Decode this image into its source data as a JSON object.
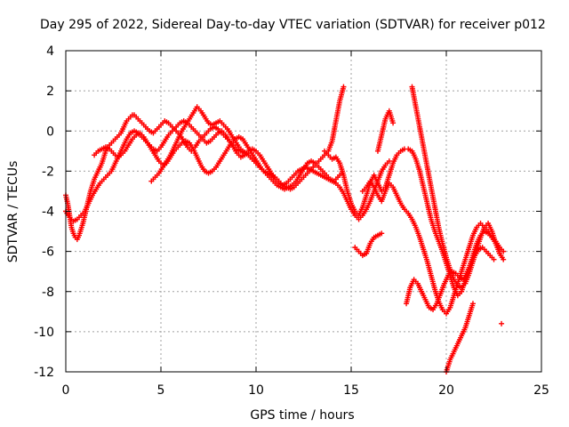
{
  "chart_data": {
    "type": "scatter",
    "title": "Day 295 of 2022, Sidereal Day-to-day VTEC variation (SDTVAR) for receiver p012",
    "xlabel": "GPS time / hours",
    "ylabel": "SDTVAR / TECUs",
    "xlim": [
      0,
      25
    ],
    "ylim": [
      -12,
      4
    ],
    "xticks": [
      0,
      5,
      10,
      15,
      20,
      25
    ],
    "yticks": [
      -12,
      -10,
      -8,
      -6,
      -4,
      -2,
      0,
      2,
      4
    ],
    "grid": true,
    "marker": "+",
    "color": "#ff0000",
    "series": [
      {
        "x": [
          0.0,
          0.1,
          0.2,
          0.3,
          0.4,
          0.5,
          0.6,
          0.7,
          0.8,
          0.9,
          1.0,
          1.1,
          1.2,
          1.3,
          1.4,
          1.5,
          1.6,
          1.7,
          1.8,
          1.9,
          2.0,
          2.1,
          2.2,
          2.3,
          2.4,
          2.5,
          2.6,
          2.7,
          2.8,
          2.9,
          3.0,
          3.1,
          3.2,
          3.3,
          3.4,
          3.5,
          3.6,
          3.7,
          3.8,
          3.9,
          4.0,
          4.2,
          4.4,
          4.6,
          4.8,
          5.0,
          5.2,
          5.4,
          5.6,
          5.8,
          6.0,
          6.2,
          6.4,
          6.6,
          6.8,
          7.0,
          7.2,
          7.4,
          7.6,
          7.8,
          8.0,
          8.2,
          8.4,
          8.6,
          8.8,
          9.0,
          9.2,
          9.4,
          9.6,
          9.8,
          10.0,
          10.2,
          10.4,
          10.6,
          10.8,
          11.0,
          11.2,
          11.4,
          11.6,
          11.8,
          12.0,
          12.2,
          12.4,
          12.6,
          12.8,
          13.0,
          13.2,
          13.4,
          13.6,
          13.8,
          14.0,
          14.2,
          14.4,
          14.6
        ],
        "y": [
          -3.2,
          -3.6,
          -4.2,
          -4.8,
          -5.1,
          -5.3,
          -5.4,
          -5.2,
          -4.9,
          -4.6,
          -4.2,
          -3.8,
          -3.4,
          -3.0,
          -2.7,
          -2.4,
          -2.2,
          -2.0,
          -1.8,
          -1.6,
          -1.3,
          -1.0,
          -0.8,
          -0.7,
          -0.6,
          -0.5,
          -0.4,
          -0.3,
          -0.2,
          -0.1,
          0.1,
          0.3,
          0.5,
          0.6,
          0.7,
          0.8,
          0.8,
          0.7,
          0.6,
          0.5,
          0.4,
          0.2,
          0.0,
          -0.1,
          0.1,
          0.3,
          0.5,
          0.4,
          0.2,
          0.0,
          -0.2,
          -0.5,
          -0.8,
          -1.0,
          -0.8,
          -0.5,
          -0.3,
          -0.1,
          0.1,
          0.2,
          0.1,
          -0.1,
          -0.3,
          -0.5,
          -0.7,
          -0.9,
          -1.0,
          -1.1,
          -1.2,
          -1.4,
          -1.6,
          -1.8,
          -2.0,
          -2.1,
          -2.2,
          -2.3,
          -2.5,
          -2.7,
          -2.8,
          -2.9,
          -2.8,
          -2.6,
          -2.4,
          -2.2,
          -2.0,
          -1.8,
          -1.6,
          -1.4,
          -1.2,
          -1.0,
          -0.5,
          0.5,
          1.5,
          2.2
        ]
      },
      {
        "x": [
          0.0,
          0.2,
          0.4,
          0.6,
          0.8,
          1.0,
          1.2,
          1.4,
          1.6,
          1.8,
          2.0,
          2.2,
          2.4,
          2.6,
          2.8,
          3.0,
          3.2,
          3.4,
          3.6,
          3.8,
          4.0,
          4.2,
          4.4,
          4.6,
          4.8,
          5.0,
          5.2,
          5.4,
          5.6,
          5.8,
          6.0,
          6.2,
          6.4,
          6.6,
          6.8,
          7.0,
          7.2,
          7.4,
          7.6,
          7.8,
          8.0,
          8.2,
          8.4,
          8.6,
          8.8,
          9.0,
          9.2,
          9.4,
          9.6,
          9.8,
          10.0,
          10.2,
          10.4,
          10.6,
          10.8,
          11.0,
          11.2,
          11.4,
          11.6,
          11.8,
          12.0,
          12.2,
          12.4,
          12.6,
          12.8,
          13.0,
          13.2,
          13.4,
          13.6,
          13.8,
          14.0,
          14.2,
          14.4,
          14.6,
          14.8,
          15.0,
          15.2,
          15.4,
          15.6,
          15.8,
          16.0,
          16.2,
          16.4,
          16.6,
          16.8,
          17.0
        ],
        "y": [
          -4.0,
          -4.3,
          -4.5,
          -4.4,
          -4.2,
          -4.0,
          -3.6,
          -3.2,
          -2.9,
          -2.6,
          -2.4,
          -2.2,
          -2.0,
          -1.6,
          -1.2,
          -0.8,
          -0.4,
          -0.1,
          0.0,
          -0.1,
          -0.3,
          -0.5,
          -0.7,
          -0.9,
          -1.0,
          -0.8,
          -0.5,
          -0.2,
          0.0,
          0.2,
          0.4,
          0.5,
          0.4,
          0.2,
          0.0,
          -0.2,
          -0.4,
          -0.6,
          -0.5,
          -0.3,
          -0.1,
          0.0,
          -0.2,
          -0.5,
          -0.8,
          -1.1,
          -1.3,
          -1.2,
          -1.0,
          -0.9,
          -1.0,
          -1.2,
          -1.5,
          -1.8,
          -2.1,
          -2.4,
          -2.6,
          -2.7,
          -2.6,
          -2.4,
          -2.2,
          -2.0,
          -1.9,
          -1.8,
          -1.9,
          -2.0,
          -2.1,
          -2.2,
          -2.3,
          -2.4,
          -2.5,
          -2.6,
          -2.8,
          -3.1,
          -3.5,
          -3.9,
          -4.2,
          -4.4,
          -4.2,
          -3.9,
          -3.5,
          -3.0,
          -2.5,
          -2.0,
          -1.7,
          -1.5
        ]
      },
      {
        "x": [
          1.5,
          1.7,
          1.9,
          2.1,
          2.3,
          2.5,
          2.7,
          2.9,
          3.1,
          3.3,
          3.5,
          3.7,
          3.9,
          4.1,
          4.3,
          4.5,
          4.7,
          4.9,
          5.1,
          5.3,
          5.5,
          5.7,
          5.9,
          6.1,
          6.3,
          6.5,
          6.7,
          6.9,
          7.1,
          7.3,
          7.5,
          7.7,
          7.9,
          8.1,
          8.3,
          8.5,
          8.7,
          8.9,
          9.1,
          9.3,
          9.5,
          9.7,
          9.9,
          10.1,
          10.3,
          10.5,
          10.7,
          10.9,
          11.1,
          11.3,
          11.5,
          11.7,
          11.9,
          12.1,
          12.3,
          12.5,
          12.7,
          12.9,
          13.1,
          13.3,
          13.5,
          13.7,
          13.9,
          14.1,
          14.3,
          14.5
        ],
        "y": [
          -1.2,
          -1.0,
          -0.9,
          -0.8,
          -0.9,
          -1.1,
          -1.3,
          -1.2,
          -1.0,
          -0.7,
          -0.4,
          -0.2,
          -0.1,
          -0.3,
          -0.6,
          -0.9,
          -1.2,
          -1.5,
          -1.7,
          -1.6,
          -1.3,
          -1.0,
          -0.8,
          -0.6,
          -0.5,
          -0.6,
          -0.9,
          -1.3,
          -1.7,
          -2.0,
          -2.1,
          -2.0,
          -1.8,
          -1.5,
          -1.2,
          -0.9,
          -0.6,
          -0.4,
          -0.3,
          -0.4,
          -0.7,
          -1.0,
          -1.3,
          -1.6,
          -1.9,
          -2.1,
          -2.3,
          -2.5,
          -2.7,
          -2.8,
          -2.9,
          -2.8,
          -2.7,
          -2.5,
          -2.2,
          -1.9,
          -1.6,
          -1.5,
          -1.6,
          -1.8,
          -2.0,
          -2.2,
          -2.4,
          -2.5,
          -2.3,
          -2.1
        ]
      },
      {
        "x": [
          4.5,
          4.7,
          4.9,
          5.1,
          5.3,
          5.5,
          5.7,
          5.9,
          6.1,
          6.3,
          6.5,
          6.7,
          6.9,
          7.1,
          7.3,
          7.5,
          7.7,
          7.9,
          8.1,
          8.3,
          8.5,
          8.7,
          8.9,
          9.1,
          9.3,
          9.5,
          9.7,
          9.9,
          10.1
        ],
        "y": [
          -2.5,
          -2.3,
          -2.1,
          -1.8,
          -1.5,
          -1.2,
          -0.8,
          -0.4,
          0.0,
          0.3,
          0.6,
          0.9,
          1.2,
          1.0,
          0.7,
          0.4,
          0.3,
          0.4,
          0.5,
          0.3,
          0.1,
          -0.2,
          -0.5,
          -0.8,
          -1.0,
          -1.1,
          -1.3,
          -1.5,
          -1.7
        ]
      },
      {
        "x": [
          13.6,
          13.8,
          14.0,
          14.2,
          14.4,
          14.6,
          14.8,
          15.0,
          15.2,
          15.4,
          15.6,
          15.8,
          16.0,
          16.2,
          16.4,
          16.6,
          16.8,
          17.0,
          17.2,
          17.4,
          17.6,
          17.8,
          18.0,
          18.2,
          18.4,
          18.6,
          18.8,
          19.0,
          19.2,
          19.4,
          19.6,
          19.8,
          20.0,
          20.2,
          20.4,
          20.6,
          20.8,
          21.0,
          21.2,
          21.4,
          21.6,
          21.8,
          22.0,
          22.2,
          22.4,
          22.6,
          22.8,
          23.0
        ],
        "y": [
          -1.0,
          -1.2,
          -1.4,
          -1.3,
          -1.6,
          -2.2,
          -3.0,
          -3.6,
          -4.0,
          -4.2,
          -3.8,
          -3.2,
          -2.6,
          -2.2,
          -2.6,
          -3.0,
          -2.8,
          -2.2,
          -1.6,
          -1.2,
          -1.0,
          -0.9,
          -0.9,
          -1.0,
          -1.4,
          -2.0,
          -2.8,
          -3.6,
          -4.4,
          -5.0,
          -5.5,
          -6.0,
          -6.6,
          -7.2,
          -7.8,
          -8.2,
          -8.0,
          -7.4,
          -6.8,
          -6.2,
          -5.6,
          -5.2,
          -5.0,
          -5.1,
          -5.3,
          -5.5,
          -5.8,
          -6.0
        ]
      },
      {
        "x": [
          15.6,
          15.8,
          16.0,
          16.2,
          16.4,
          16.6,
          16.8,
          17.0,
          17.2,
          17.4,
          17.6,
          17.8,
          18.0,
          18.2,
          18.4,
          18.6,
          18.8,
          19.0,
          19.2,
          19.4,
          19.6,
          19.8,
          20.0,
          20.2,
          20.4,
          20.6,
          20.8,
          21.0,
          21.2,
          21.4,
          21.6,
          21.8,
          22.0,
          22.2,
          22.4,
          22.6,
          22.8
        ],
        "y": [
          -3.0,
          -2.8,
          -2.5,
          -2.8,
          -3.2,
          -3.5,
          -3.0,
          -2.6,
          -2.8,
          -3.2,
          -3.6,
          -3.9,
          -4.1,
          -4.4,
          -4.8,
          -5.3,
          -5.9,
          -6.5,
          -7.2,
          -7.9,
          -8.5,
          -8.9,
          -9.1,
          -8.8,
          -8.2,
          -7.6,
          -7.0,
          -6.4,
          -5.8,
          -5.2,
          -4.8,
          -4.6,
          -4.8,
          -5.0,
          -5.3,
          -5.6,
          -5.9
        ]
      },
      {
        "x": [
          18.2,
          18.4,
          18.6,
          18.8,
          19.0,
          19.2,
          19.4,
          19.6,
          19.8,
          20.0,
          20.2,
          20.4,
          20.6,
          20.8,
          21.0,
          21.2,
          21.4,
          21.6,
          21.8,
          22.0,
          22.2,
          22.4,
          22.6,
          22.8,
          23.0
        ],
        "y": [
          2.2,
          1.2,
          0.2,
          -0.8,
          -1.8,
          -2.8,
          -3.8,
          -4.8,
          -5.6,
          -6.3,
          -6.9,
          -7.4,
          -7.7,
          -7.8,
          -7.6,
          -7.1,
          -6.5,
          -5.9,
          -5.3,
          -4.8,
          -4.6,
          -5.0,
          -5.6,
          -6.1,
          -6.4
        ]
      },
      {
        "x": [
          17.9,
          18.1,
          18.3,
          18.5,
          18.7,
          18.9,
          19.1,
          19.3,
          19.5,
          19.7,
          19.9,
          20.1,
          20.3,
          20.5,
          20.7,
          20.9,
          21.1,
          21.3,
          21.5,
          21.7,
          21.9,
          22.1,
          22.3,
          22.5
        ],
        "y": [
          -8.6,
          -7.8,
          -7.4,
          -7.6,
          -8.0,
          -8.4,
          -8.8,
          -8.9,
          -8.6,
          -8.1,
          -7.6,
          -7.2,
          -7.0,
          -7.1,
          -7.3,
          -7.4,
          -7.0,
          -6.6,
          -6.2,
          -5.9,
          -5.8,
          -6.0,
          -6.2,
          -6.4
        ]
      },
      {
        "x": [
          20.0,
          20.2,
          20.4,
          20.6,
          20.8,
          21.0,
          21.2,
          21.4
        ],
        "y": [
          -12.0,
          -11.4,
          -11.0,
          -10.6,
          -10.2,
          -9.8,
          -9.2,
          -8.6
        ]
      },
      {
        "x": [
          15.2,
          15.4,
          15.6,
          15.8,
          16.0,
          16.2,
          16.4,
          16.6
        ],
        "y": [
          -5.8,
          -6.0,
          -6.2,
          -6.1,
          -5.6,
          -5.3,
          -5.2,
          -5.1
        ]
      },
      {
        "x": [
          16.4,
          16.6,
          16.8,
          17.0,
          17.2
        ],
        "y": [
          -1.0,
          -0.2,
          0.6,
          1.0,
          0.4
        ]
      },
      {
        "x": [
          22.9
        ],
        "y": [
          -9.6
        ]
      }
    ]
  }
}
